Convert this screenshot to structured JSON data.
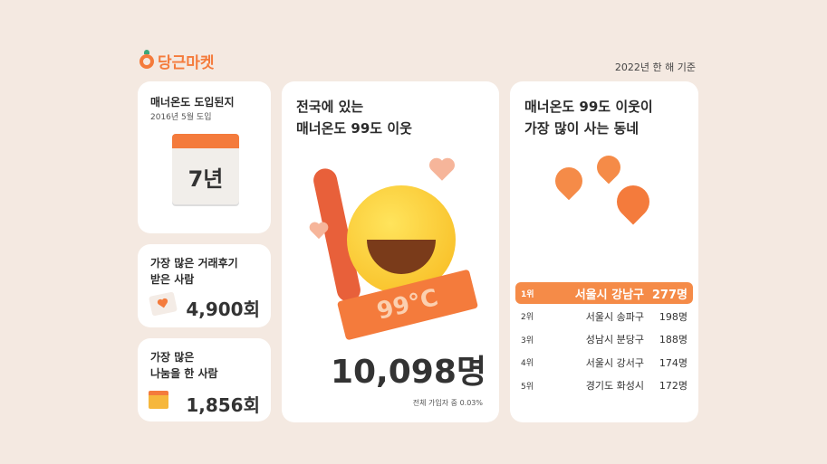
{
  "header": {
    "brand": "당근마켓",
    "basis": "2022년 한 해 기준"
  },
  "card_years": {
    "title": "매너온도 도입된지",
    "subtitle": "2016년 5월 도입",
    "value": "7년"
  },
  "card_reviews": {
    "title_line1": "가장 많은 거래후기",
    "title_line2": "받은 사람",
    "value": "4,900회"
  },
  "card_sharing": {
    "title_line1": "가장 많은",
    "title_line2": "나눔을 한 사람",
    "value": "1,856회"
  },
  "card_neighbors": {
    "title_line1": "전국에 있는",
    "title_line2": "매너온도 99도 이웃",
    "badge": "99°C",
    "value": "10,098명",
    "note": "전체 가입자 중 0.03%"
  },
  "card_ranking": {
    "title_line1": "매너온도 99도 이웃이",
    "title_line2": "가장 많이 사는 동네",
    "rows": [
      {
        "rank": "1위",
        "name": "서울시 강남구",
        "count": "277명"
      },
      {
        "rank": "2위",
        "name": "서울시 송파구",
        "count": "198명"
      },
      {
        "rank": "3위",
        "name": "성남시 분당구",
        "count": "188명"
      },
      {
        "rank": "4위",
        "name": "서울시 강서구",
        "count": "174명"
      },
      {
        "rank": "5위",
        "name": "경기도 화성시",
        "count": "172명"
      }
    ]
  },
  "colors": {
    "accent": "#f47b3c",
    "background": "#f4e9e1"
  }
}
